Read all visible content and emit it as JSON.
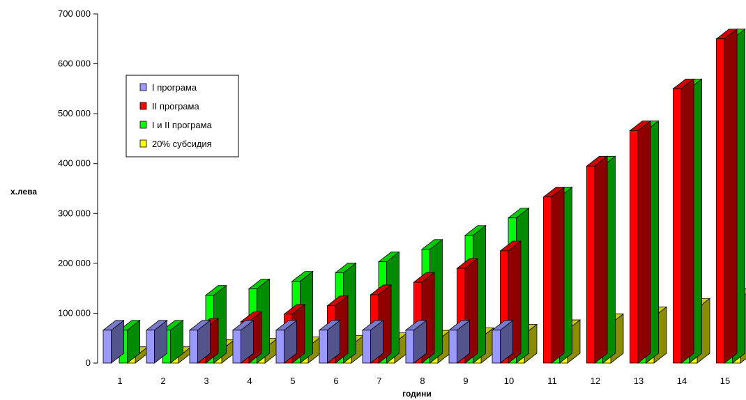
{
  "chart_data": {
    "type": "bar",
    "title": "",
    "xlabel": "години",
    "ylabel": "х.лева",
    "categories": [
      "1",
      "2",
      "3",
      "4",
      "5",
      "6",
      "7",
      "8",
      "9",
      "10",
      "11",
      "12",
      "13",
      "14",
      "15"
    ],
    "ylim": [
      0,
      700000
    ],
    "yticks": [
      0,
      100000,
      200000,
      300000,
      400000,
      500000,
      600000,
      700000
    ],
    "ytick_labels": [
      "0",
      "100 000",
      "200 000",
      "300 000",
      "400 000",
      "500 000",
      "600 000",
      "700 000"
    ],
    "legend_position": "upper-left",
    "grid": false,
    "series": [
      {
        "name": "I програма",
        "color": "#9999ff",
        "values": [
          66000,
          66000,
          66000,
          66000,
          66000,
          66000,
          66000,
          66000,
          66000,
          66000,
          null,
          null,
          null,
          null,
          null
        ]
      },
      {
        "name": "II програма",
        "color": "#ff0000",
        "values": [
          null,
          null,
          70000,
          83000,
          98000,
          115000,
          137000,
          162000,
          190000,
          225000,
          333000,
          395000,
          466000,
          550000,
          650000
        ]
      },
      {
        "name": "I и II програма",
        "color": "#00ff00",
        "values": [
          66000,
          66000,
          136000,
          149000,
          164000,
          181000,
          203000,
          228000,
          256000,
          291000,
          333000,
          395000,
          466000,
          550000,
          650000
        ]
      },
      {
        "name": "20% субсидия",
        "color": "#ffff00",
        "values": [
          13000,
          13000,
          27000,
          30000,
          33000,
          36000,
          41000,
          46000,
          51000,
          58000,
          67000,
          79000,
          93000,
          110000,
          130000
        ]
      }
    ]
  }
}
